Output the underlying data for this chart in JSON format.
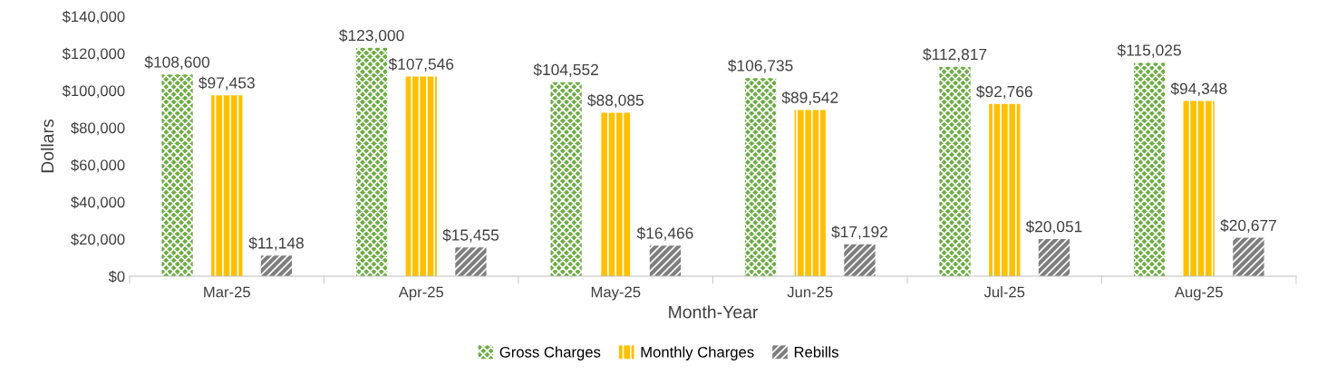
{
  "chart_data": {
    "type": "bar",
    "xlabel": "Month-Year",
    "ylabel": "Dollars",
    "categories": [
      "Mar-25",
      "Apr-25",
      "May-25",
      "Jun-25",
      "Jul-25",
      "Aug-25"
    ],
    "series": [
      {
        "name": "Gross Charges",
        "color": "#70ad47",
        "values": [
          108600,
          123000,
          104552,
          106735,
          112817,
          115025
        ],
        "value_labels": [
          "$108,600",
          "$123,000",
          "$104,552",
          "$106,735",
          "$112,817",
          "$115,025"
        ]
      },
      {
        "name": "Monthly Charges",
        "color": "#ffc000",
        "values": [
          97453,
          107546,
          88085,
          89542,
          92766,
          94348
        ],
        "value_labels": [
          "$97,453",
          "$107,546",
          "$88,085",
          "$89,542",
          "$92,766",
          "$94,348"
        ]
      },
      {
        "name": "Rebills",
        "color": "#7f7f7f",
        "values": [
          11148,
          15455,
          16466,
          17192,
          20051,
          20677
        ],
        "value_labels": [
          "$11,148",
          "$15,455",
          "$16,466",
          "$17,192",
          "$20,051",
          "$20,677"
        ]
      }
    ],
    "ylim": [
      0,
      140000
    ],
    "yticks": [
      {
        "value": 0,
        "label": "$0"
      },
      {
        "value": 20000,
        "label": "$20,000"
      },
      {
        "value": 40000,
        "label": "$40,000"
      },
      {
        "value": 60000,
        "label": "$60,000"
      },
      {
        "value": 80000,
        "label": "$80,000"
      },
      {
        "value": 100000,
        "label": "$100,000"
      },
      {
        "value": 120000,
        "label": "$120,000"
      },
      {
        "value": 140000,
        "label": "$140,000"
      }
    ],
    "grid": false,
    "legend": "bottom"
  }
}
